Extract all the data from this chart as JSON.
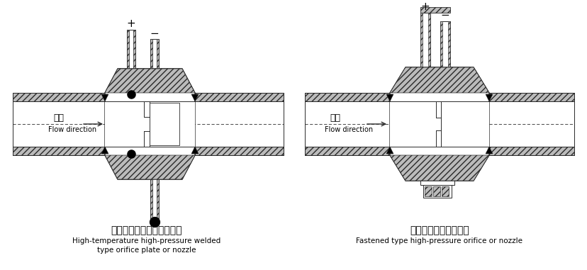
{
  "bg_color": "#ffffff",
  "lc": "#2a2a2a",
  "hc": "#bbbbbb",
  "left_label_cn": "高温高压焊接式孔板或喷嘴",
  "left_label_en1": "High-temperature high-pressure welded",
  "left_label_en2": "type orifice plate or nozzle",
  "right_label_cn": "紧固式高压孔板或喷嘴",
  "right_label_en": "Fastened type high-pressure orifice or nozzle",
  "flow_cn": "流向",
  "flow_en": "Flow direction",
  "plus": "+",
  "minus": "−",
  "figw": 8.29,
  "figh": 3.81,
  "dpi": 100
}
